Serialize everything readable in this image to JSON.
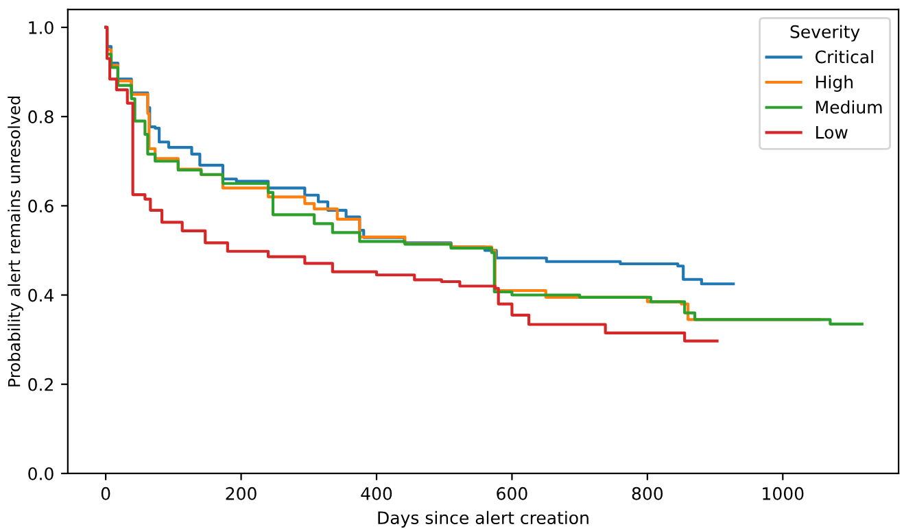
{
  "chart_data": {
    "type": "step",
    "xlabel": "Days since alert creation",
    "ylabel": "Probability alert remains unresolved",
    "legend_title": "Severity",
    "legend": "top right",
    "grid": false,
    "xlim": [
      -56,
      1171
    ],
    "ylim": [
      0,
      1.04
    ],
    "xticks": [
      0,
      200,
      400,
      600,
      800,
      1000
    ],
    "yticks": [
      {
        "value": 0,
        "label": "0.0"
      },
      0.2,
      0.4,
      0.6,
      0.8,
      {
        "value": 1,
        "label": "1.0"
      }
    ],
    "series": [
      {
        "name": "Critical",
        "color": "#1f77b4",
        "x": [
          0,
          2,
          8,
          18,
          38,
          62,
          65,
          73,
          79,
          93,
          127,
          139,
          173,
          193,
          240,
          294,
          314,
          328,
          355,
          375,
          381,
          441,
          510,
          560,
          577,
          651,
          760,
          845,
          853,
          880,
          927
        ],
        "values": [
          1.0,
          0.957,
          0.92,
          0.884,
          0.853,
          0.82,
          0.777,
          0.774,
          0.743,
          0.731,
          0.716,
          0.691,
          0.66,
          0.655,
          0.64,
          0.624,
          0.609,
          0.59,
          0.575,
          0.545,
          0.529,
          0.517,
          0.508,
          0.5,
          0.483,
          0.475,
          0.47,
          0.465,
          0.435,
          0.425,
          0.425
        ]
      },
      {
        "name": "High",
        "color": "#ff7f0e",
        "x": [
          0,
          2,
          8,
          18,
          38,
          62,
          64,
          73,
          107,
          141,
          173,
          240,
          294,
          308,
          342,
          375,
          442,
          510,
          570,
          575,
          650,
          800,
          850,
          860,
          1054
        ],
        "values": [
          1.0,
          0.95,
          0.915,
          0.88,
          0.85,
          0.807,
          0.728,
          0.706,
          0.682,
          0.67,
          0.64,
          0.62,
          0.605,
          0.593,
          0.57,
          0.53,
          0.515,
          0.508,
          0.5,
          0.41,
          0.395,
          0.385,
          0.38,
          0.345,
          0.345
        ]
      },
      {
        "name": "Medium",
        "color": "#2ca02c",
        "x": [
          0,
          2,
          8,
          18,
          38,
          43,
          58,
          62,
          73,
          107,
          141,
          173,
          240,
          247,
          308,
          335,
          375,
          442,
          510,
          570,
          574,
          600,
          700,
          805,
          855,
          870,
          1070,
          1117
        ],
        "values": [
          1.0,
          0.94,
          0.91,
          0.87,
          0.84,
          0.79,
          0.76,
          0.716,
          0.7,
          0.68,
          0.67,
          0.65,
          0.63,
          0.58,
          0.56,
          0.54,
          0.52,
          0.514,
          0.505,
          0.495,
          0.407,
          0.4,
          0.395,
          0.385,
          0.36,
          0.345,
          0.335,
          0.335
        ]
      },
      {
        "name": "Low",
        "color": "#d62728",
        "x": [
          0,
          2,
          6,
          16,
          32,
          40,
          58,
          66,
          83,
          113,
          147,
          180,
          240,
          294,
          335,
          400,
          456,
          496,
          523,
          575,
          580,
          600,
          625,
          738,
          855,
          903
        ],
        "values": [
          1.0,
          0.93,
          0.884,
          0.86,
          0.83,
          0.625,
          0.615,
          0.59,
          0.563,
          0.544,
          0.517,
          0.498,
          0.486,
          0.471,
          0.452,
          0.445,
          0.434,
          0.43,
          0.42,
          0.415,
          0.38,
          0.355,
          0.334,
          0.315,
          0.297,
          0.297
        ]
      }
    ]
  }
}
